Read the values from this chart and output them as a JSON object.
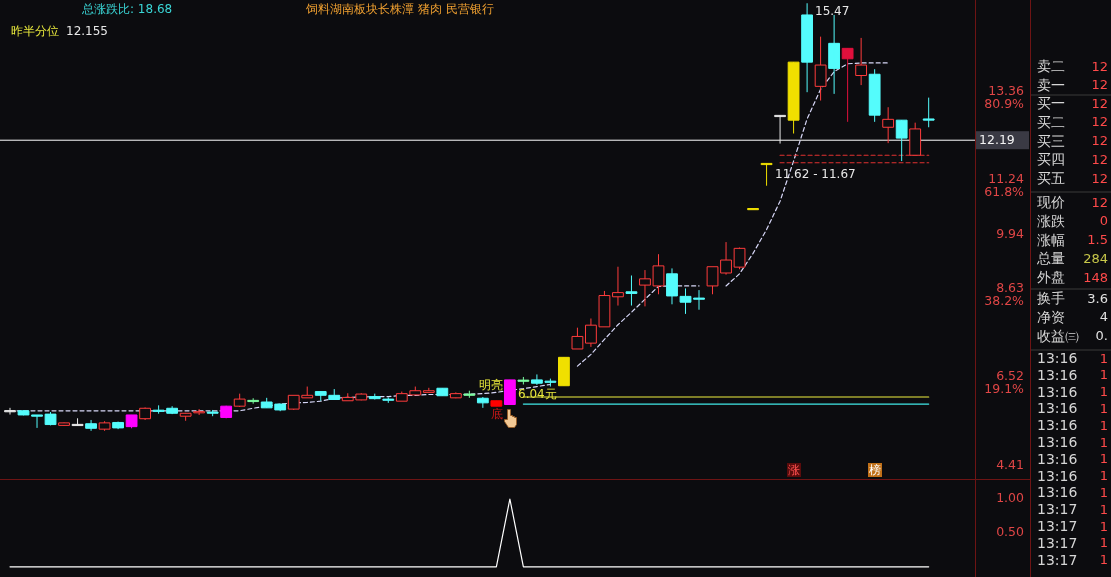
{
  "chart_data": [
    {
      "type": "candlestick",
      "categories": [
        null,
        null,
        null,
        null,
        null,
        null,
        null,
        null,
        null,
        null,
        null,
        null,
        null,
        null,
        null,
        null,
        null,
        null,
        null,
        null,
        null,
        null,
        null,
        null,
        null,
        null,
        null,
        null,
        null,
        null,
        null,
        null,
        null,
        null,
        null,
        null,
        null,
        null,
        null,
        null,
        null,
        null,
        null,
        null,
        null,
        null,
        null,
        null,
        null,
        null,
        null,
        null,
        null,
        null,
        null,
        null,
        null,
        null,
        null,
        null,
        null,
        null,
        null,
        null,
        null,
        null,
        null,
        null,
        null
      ],
      "ohlc": [
        [
          5.7,
          5.78,
          5.62,
          5.7
        ],
        [
          5.71,
          5.72,
          5.6,
          5.61
        ],
        [
          5.61,
          5.61,
          5.3,
          5.58
        ],
        [
          5.63,
          5.68,
          5.36,
          5.38
        ],
        [
          5.36,
          5.43,
          5.35,
          5.42
        ],
        [
          5.37,
          5.53,
          5.37,
          5.37
        ],
        [
          5.4,
          5.49,
          5.23,
          5.29
        ],
        [
          5.27,
          5.46,
          5.23,
          5.42
        ],
        [
          5.43,
          5.45,
          5.27,
          5.3
        ],
        [
          5.33,
          5.61,
          5.29,
          5.61
        ],
        [
          5.52,
          5.79,
          5.49,
          5.77
        ],
        [
          5.71,
          5.84,
          5.64,
          5.71
        ],
        [
          5.77,
          5.82,
          5.63,
          5.65
        ],
        [
          5.58,
          5.66,
          5.47,
          5.65
        ],
        [
          5.67,
          5.75,
          5.61,
          5.68
        ],
        [
          5.67,
          5.73,
          5.58,
          5.66
        ],
        [
          5.55,
          5.83,
          5.53,
          5.82
        ],
        [
          5.82,
          6.12,
          5.8,
          5.99
        ],
        [
          5.95,
          6.01,
          5.88,
          5.94
        ],
        [
          5.92,
          6.02,
          5.78,
          5.78
        ],
        [
          5.87,
          5.88,
          5.7,
          5.73
        ],
        [
          5.75,
          6.08,
          5.73,
          6.08
        ],
        [
          6.02,
          6.29,
          6.02,
          6.08
        ],
        [
          6.17,
          6.17,
          5.95,
          6.08
        ],
        [
          6.08,
          6.23,
          5.98,
          5.98
        ],
        [
          5.95,
          6.13,
          5.95,
          6.03
        ],
        [
          5.97,
          6.13,
          5.96,
          6.11
        ],
        [
          6.05,
          6.12,
          5.98,
          6.0
        ],
        [
          5.98,
          6.03,
          5.9,
          5.97
        ],
        [
          5.94,
          6.17,
          5.94,
          6.12
        ],
        [
          6.09,
          6.29,
          6.09,
          6.19
        ],
        [
          6.15,
          6.26,
          6.15,
          6.19
        ],
        [
          6.25,
          6.25,
          6.07,
          6.07
        ],
        [
          6.02,
          6.15,
          6.01,
          6.12
        ],
        [
          6.1,
          6.19,
          6.02,
          6.09
        ],
        [
          6.01,
          6.04,
          5.78,
          5.9
        ],
        [
          5.82,
          5.95,
          5.82,
          5.95
        ],
        [
          5.86,
          6.45,
          5.86,
          6.45
        ],
        [
          6.43,
          6.52,
          6.34,
          6.43
        ],
        [
          6.45,
          6.58,
          6.33,
          6.37
        ],
        [
          6.41,
          6.48,
          6.29,
          6.4
        ],
        [
          6.31,
          6.99,
          6.31,
          6.99
        ],
        [
          7.19,
          7.7,
          7.19,
          7.49
        ],
        [
          7.33,
          7.92,
          7.24,
          7.76
        ],
        [
          7.72,
          8.58,
          7.72,
          8.47
        ],
        [
          8.44,
          9.16,
          8.23,
          8.54
        ],
        [
          8.56,
          8.95,
          8.23,
          8.52
        ],
        [
          8.72,
          9.08,
          8.21,
          8.87
        ],
        [
          8.7,
          9.46,
          8.5,
          9.18
        ],
        [
          8.99,
          9.12,
          8.26,
          8.46
        ],
        [
          8.45,
          8.64,
          8.03,
          8.31
        ],
        [
          8.4,
          8.6,
          8.13,
          8.39
        ],
        [
          8.7,
          9.16,
          8.5,
          9.16
        ],
        [
          9.01,
          9.75,
          8.97,
          9.32
        ],
        [
          9.15,
          9.62,
          9.1,
          9.6
        ],
        [
          10.54,
          10.54,
          10.54,
          10.54
        ],
        [
          11.62,
          11.62,
          11.1,
          11.62
        ],
        [
          12.77,
          12.77,
          12.11,
          12.77
        ],
        [
          12.67,
          14.06,
          12.35,
          14.06
        ],
        [
          15.19,
          15.47,
          13.34,
          14.06
        ],
        [
          13.48,
          14.67,
          13.14,
          13.99
        ],
        [
          14.51,
          15.19,
          13.3,
          13.91
        ],
        [
          14.14,
          14.39,
          12.63,
          14.39
        ],
        [
          13.74,
          14.64,
          13.51,
          13.99
        ],
        [
          13.77,
          13.89,
          12.63,
          12.79
        ],
        [
          12.5,
          12.98,
          12.12,
          12.69
        ],
        [
          12.67,
          12.67,
          11.69,
          12.24
        ],
        [
          11.83,
          12.61,
          11.83,
          12.46
        ],
        [
          12.69,
          13.21,
          12.5,
          12.68
        ]
      ],
      "color": "#ff3c3c",
      "colors": [
        "#e8e8e8",
        "#54fcfc",
        "#54fcfc",
        "#54fcfc",
        "#ff3c3c",
        "#e8e8e8",
        "#54fcfc",
        "#ff3c3c",
        "#54fcfc",
        "#ff00ff",
        "#ff3c3c",
        "#54fcfc",
        "#54fcfc",
        "#ff3c3c",
        "#ff3c3c",
        "#54fcfc",
        "#ff00ff",
        "#ff3c3c",
        "#7cfca0",
        "#54fcfc",
        "#54fcfc",
        "#ff3c3c",
        "#ff3c3c",
        "#54fcfc",
        "#54fcfc",
        "#ff3c3c",
        "#ff3c3c",
        "#54fcfc",
        "#54fcfc",
        "#ff3c3c",
        "#ff3c3c",
        "#ff3c3c",
        "#54fcfc",
        "#ff3c3c",
        "#7cfca0",
        "#54fcfc",
        "#ff0000",
        "#ff00ff",
        "#7cfca0",
        "#54fcfc",
        "#54fcfc",
        "#f0e000",
        "#ff3c3c",
        "#ff3c3c",
        "#ff3c3c",
        "#ff3c3c",
        "#54fcfc",
        "#ff3c3c",
        "#ff3c3c",
        "#54fcfc",
        "#54fcfc",
        "#54fcfc",
        "#ff3c3c",
        "#ff3c3c",
        "#ff3c3c",
        "#f0e000",
        "#f0e000",
        "#e8e8e8",
        "#f0e000",
        "#54fcfc",
        "#ff3c3c",
        "#54fcfc",
        "#e0103c",
        "#ff3c3c",
        "#54fcfc",
        "#ff3c3c",
        "#54fcfc",
        "#ff3c3c",
        "#54fcfc"
      ],
      "series": [
        {
          "type": "line",
          "color": "#d8d8f8",
          "line_style": "dashed",
          "values": [
            5.71,
            5.71,
            5.71,
            5.71,
            5.71,
            5.71,
            5.71,
            5.71,
            5.71,
            5.71,
            5.71,
            5.71,
            5.71,
            5.71,
            5.71,
            5.71,
            5.71,
            5.71,
            5.77,
            5.82,
            5.87,
            5.9,
            5.91,
            5.94,
            6.01,
            6.03,
            6.04,
            6.05,
            6.05,
            6.08,
            6.08,
            6.1,
            6.1,
            6.1,
            6.11,
            6.12,
            6.15,
            6.2,
            6.24,
            6.29,
            6.34,
            null,
            6.78,
            7.06,
            7.42,
            7.77,
            8.07,
            8.38,
            8.69,
            8.7,
            8.7,
            8.7,
            null,
            8.7,
            8.99,
            9.48,
            10.05,
            10.73,
            11.69,
            12.7,
            13.41,
            13.83,
            14.02,
            14.04,
            14.04,
            14.04,
            null,
            null,
            null
          ]
        },
        {
          "type": "line",
          "color": "#f0f040",
          "values": [
            null,
            null,
            null,
            null,
            null,
            null,
            null,
            null,
            null,
            null,
            null,
            null,
            null,
            null,
            null,
            null,
            null,
            null,
            null,
            null,
            null,
            null,
            null,
            null,
            null,
            null,
            null,
            null,
            null,
            null,
            null,
            null,
            null,
            null,
            null,
            null,
            null,
            null,
            6.04,
            6.04,
            6.04,
            6.04,
            6.04,
            6.04,
            6.04,
            6.04,
            6.04,
            6.04,
            6.04,
            6.04,
            6.04,
            6.04,
            6.04,
            6.04,
            6.04,
            6.04,
            6.04,
            6.04,
            6.04,
            6.04,
            6.04,
            6.04,
            6.04,
            6.04,
            6.04,
            6.04,
            6.04,
            6.04,
            6.04
          ]
        },
        {
          "type": "line",
          "color": "#40e8e8",
          "values": [
            null,
            null,
            null,
            null,
            null,
            null,
            null,
            null,
            null,
            null,
            null,
            null,
            null,
            null,
            null,
            null,
            null,
            null,
            null,
            null,
            null,
            null,
            null,
            null,
            null,
            null,
            null,
            null,
            null,
            null,
            null,
            null,
            null,
            null,
            null,
            null,
            null,
            null,
            5.87,
            5.87,
            5.87,
            5.87,
            5.87,
            5.87,
            5.87,
            5.87,
            5.87,
            5.87,
            5.87,
            5.87,
            5.87,
            5.87,
            5.87,
            5.87,
            5.87,
            5.87,
            5.87,
            5.87,
            5.87,
            5.87,
            5.87,
            5.87,
            5.87,
            5.87,
            5.87,
            5.87,
            5.87,
            5.87,
            5.87
          ]
        },
        {
          "type": "line",
          "color": "#e03030",
          "line_style": "dashed",
          "values": [
            null,
            null,
            null,
            null,
            null,
            null,
            null,
            null,
            null,
            null,
            null,
            null,
            null,
            null,
            null,
            null,
            null,
            null,
            null,
            null,
            null,
            null,
            null,
            null,
            null,
            null,
            null,
            null,
            null,
            null,
            null,
            null,
            null,
            null,
            null,
            null,
            null,
            null,
            null,
            null,
            null,
            null,
            null,
            null,
            null,
            null,
            null,
            null,
            null,
            null,
            null,
            null,
            null,
            null,
            null,
            null,
            null,
            11.83,
            11.83,
            11.83,
            11.83,
            11.83,
            11.83,
            11.83,
            11.83,
            11.83,
            11.83,
            11.83,
            11.83
          ]
        },
        {
          "type": "line",
          "color": "#e03030",
          "line_style": "dashed",
          "values": [
            null,
            null,
            null,
            null,
            null,
            null,
            null,
            null,
            null,
            null,
            null,
            null,
            null,
            null,
            null,
            null,
            null,
            null,
            null,
            null,
            null,
            null,
            null,
            null,
            null,
            null,
            null,
            null,
            null,
            null,
            null,
            null,
            null,
            null,
            null,
            null,
            null,
            null,
            null,
            null,
            null,
            null,
            null,
            null,
            null,
            null,
            null,
            null,
            null,
            null,
            null,
            null,
            null,
            null,
            null,
            null,
            null,
            11.65,
            11.65,
            11.65,
            11.65,
            11.65,
            11.65,
            11.65,
            11.65,
            11.65,
            11.65,
            11.65,
            11.65
          ]
        }
      ],
      "ylim": [
        4.1,
        15.5
      ],
      "yticks": [
        13.36,
        11.24,
        9.94,
        8.63,
        6.52,
        4.41
      ],
      "y2lim": [
        0,
        103
      ],
      "y2ticks": [
        {
          "value": 80.9,
          "label": "80.9%"
        },
        {
          "value": 61.8,
          "label": "61.8%"
        },
        {
          "value": 38.2,
          "label": "38.2%"
        },
        {
          "value": 19.1,
          "label": "19.1%"
        }
      ],
      "ref_lines": [
        {
          "axis": "y",
          "value": 12.19,
          "label": "12.19",
          "color": "#ffffff"
        }
      ],
      "annotations": [
        "总涨跌比: 18.68",
        "饲料湖南板块长株潭 猪肉 民营银行",
        "昨半分位",
        "12.155",
        "明亮",
        {
          "text": "6.04元",
          "y": 6.04
        },
        "底",
        "11.62 - 11.67",
        "15.47",
        "涨",
        "榜"
      ]
    },
    {
      "type": "line",
      "categories": [
        null,
        null,
        null,
        null,
        null,
        null,
        null,
        null,
        null,
        null,
        null,
        null,
        null,
        null,
        null,
        null,
        null,
        null,
        null,
        null,
        null,
        null,
        null,
        null,
        null,
        null,
        null,
        null,
        null,
        null,
        null,
        null,
        null,
        null,
        null,
        null,
        null,
        null,
        null,
        null,
        null,
        null,
        null,
        null,
        null,
        null,
        null,
        null,
        null,
        null,
        null,
        null,
        null,
        null,
        null,
        null,
        null,
        null,
        null,
        null,
        null,
        null,
        null,
        null,
        null,
        null,
        null,
        null,
        null
      ],
      "values": [
        0,
        0,
        0,
        0,
        0,
        0,
        0,
        0,
        0,
        0,
        0,
        0,
        0,
        0,
        0,
        0,
        0,
        0,
        0,
        0,
        0,
        0,
        0,
        0,
        0,
        0,
        0,
        0,
        0,
        0,
        0,
        0,
        0,
        0,
        0,
        0,
        0,
        1,
        0,
        0,
        0,
        0,
        0,
        0,
        0,
        0,
        0,
        0,
        0,
        0,
        0,
        0,
        0,
        0,
        0,
        0,
        0,
        0,
        0,
        0,
        0,
        0,
        0,
        0,
        0,
        0,
        0,
        0,
        0
      ],
      "color": "#ffffff",
      "ylim": [
        -0.15,
        1.28
      ],
      "yticks": [
        {
          "value": 1,
          "label": "1.00"
        },
        {
          "value": 0.5,
          "label": "0.50"
        }
      ]
    },
    {
      "type": "other",
      "annotations": [
        "卖二",
        "12",
        "卖一",
        "12",
        "买一",
        "12",
        "买二",
        "12",
        "买三",
        "12",
        "买四",
        "12",
        "买五",
        "12",
        "现价",
        "12",
        "涨跌",
        "0",
        "涨幅",
        "1.5",
        "总量",
        "284",
        "外盘",
        "148",
        "换手",
        "3.6",
        "净资",
        "4",
        "收益㈢",
        "0.",
        "13:16",
        "1",
        "13:16",
        "1",
        "13:16",
        "1",
        "13:16",
        "1",
        "13:16",
        "1",
        "13:16",
        "1",
        "13:16",
        "1",
        "13:16",
        "1",
        "13:16",
        "1",
        "13:17",
        "1",
        "13:17",
        "1",
        "13:17",
        "1",
        "13:17",
        "1"
      ],
      "colors": [
        "#ff4a4a",
        "#ff4a4a",
        "#ff4a4a",
        "#ff4a4a",
        "#ff4a4a",
        "#ff4a4a",
        "#ff4a4a",
        "#ff4a4a",
        "#ff4a4a",
        "#ff4a4a",
        "#c8c84a",
        "#ff4a4a",
        "#e0e0e0",
        "#e0e0e0",
        "#e0e0e0",
        "#ff4a4a",
        "#ff4a4a",
        "#ff4a4a",
        "#ff4a4a",
        "#ff4a4a",
        "#ff4a4a",
        "#ff4a4a",
        "#ff4a4a",
        "#ff4a4a",
        "#ff4a4a",
        "#ff4a4a",
        "#ff4a4a",
        "#ff4a4a"
      ]
    }
  ]
}
